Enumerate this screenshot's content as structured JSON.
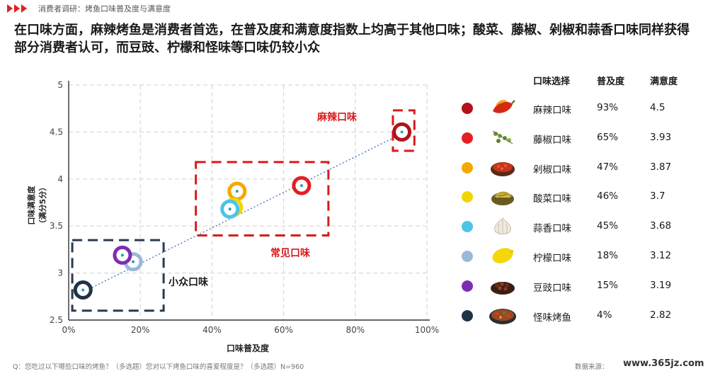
{
  "header": {
    "breadcrumb": "消费者调研：烤鱼口味普及度与满意度",
    "headline": "在口味方面，麻辣烤鱼是消费者首选，在普及度和满意度指数上均高于其他口味；酸菜、藤椒、剁椒和蒜香口味同样获得部分消费者认可，而豆豉、柠檬和怪味等口味仍较小众"
  },
  "chart_data": {
    "type": "scatter",
    "xlabel": "口味普及度",
    "ylabel": "口味满意度（满分5分）",
    "xlim": [
      0,
      100
    ],
    "ylim": [
      2.5,
      5
    ],
    "x_ticks": [
      "0%",
      "20%",
      "40%",
      "60%",
      "80%",
      "100%"
    ],
    "y_ticks": [
      "2.5",
      "3",
      "3.5",
      "4",
      "4.5",
      "5"
    ],
    "grid": true,
    "trendline": true,
    "points": [
      {
        "name": "麻辣口味",
        "x": 93,
        "y": 4.5,
        "color": "#b3121b"
      },
      {
        "name": "藤椒口味",
        "x": 65,
        "y": 3.93,
        "color": "#e31e24"
      },
      {
        "name": "剁椒口味",
        "x": 47,
        "y": 3.87,
        "color": "#f5a800"
      },
      {
        "name": "酸菜口味",
        "x": 46,
        "y": 3.7,
        "color": "#f2d500"
      },
      {
        "name": "蒜香口味",
        "x": 45,
        "y": 3.68,
        "color": "#4cc4e6"
      },
      {
        "name": "柠檬口味",
        "x": 18,
        "y": 3.12,
        "color": "#9bb8d8"
      },
      {
        "name": "豆豉口味",
        "x": 15,
        "y": 3.19,
        "color": "#7b2fb0"
      },
      {
        "name": "怪味烤鱼",
        "x": 4,
        "y": 2.82,
        "color": "#1f3347"
      }
    ],
    "annotations": [
      "麻辣口味",
      "常见口味",
      "小众口味"
    ]
  },
  "table": {
    "headers": [
      "口味选择",
      "普及度",
      "满意度"
    ],
    "rows": [
      {
        "name": "麻辣口味",
        "pop": "93%",
        "sat": "4.5",
        "color": "#b3121b",
        "icon": "chili-pepper-icon"
      },
      {
        "name": "藤椒口味",
        "pop": "65%",
        "sat": "3.93",
        "color": "#e31e24",
        "icon": "green-pepper-icon"
      },
      {
        "name": "剁椒口味",
        "pop": "47%",
        "sat": "3.87",
        "color": "#f5a800",
        "icon": "chopped-chili-bowl-icon"
      },
      {
        "name": "酸菜口味",
        "pop": "46%",
        "sat": "3.7",
        "color": "#f2d500",
        "icon": "pickled-vegetable-icon"
      },
      {
        "name": "蒜香口味",
        "pop": "45%",
        "sat": "3.68",
        "color": "#4cc4e6",
        "icon": "garlic-icon"
      },
      {
        "name": "柠檬口味",
        "pop": "18%",
        "sat": "3.12",
        "color": "#9bb8d8",
        "icon": "lemon-icon"
      },
      {
        "name": "豆豉口味",
        "pop": "15%",
        "sat": "3.19",
        "color": "#7b2fb0",
        "icon": "black-bean-icon"
      },
      {
        "name": "怪味烤鱼",
        "pop": "4%",
        "sat": "2.82",
        "color": "#1f3347",
        "icon": "fish-dish-icon"
      }
    ]
  },
  "footer": {
    "question": "Q：您吃过以下哪些口味的烤鱼？（多选题）您对以下烤鱼口味的喜爱程度是？（多选题）N=960",
    "source": "数据来源：",
    "watermark": "www.365jz.com"
  }
}
